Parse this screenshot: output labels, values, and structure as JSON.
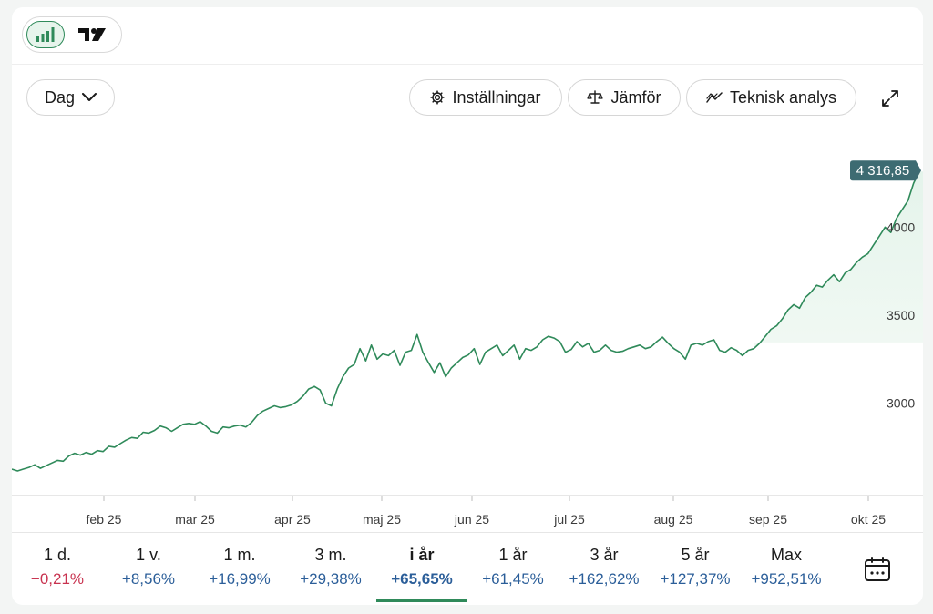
{
  "toolbar": {
    "interval_label": "Dag",
    "settings_label": "Inställningar",
    "compare_label": "Jämför",
    "technical_label": "Teknisk analys"
  },
  "colors": {
    "line": "#2f8a5a",
    "area": "#eaf6ef",
    "price_tag": "#3d6b72",
    "positive": "#2b5e99",
    "negative": "#c8324f"
  },
  "chart_data": {
    "type": "line",
    "title": "",
    "xlabel": "",
    "ylabel": "",
    "x_tick_labels": [
      "feb 25",
      "mar 25",
      "apr 25",
      "maj 25",
      "jun 25",
      "jul 25",
      "aug 25",
      "sep 25",
      "okt 25"
    ],
    "y_ticks": [
      3000,
      3500,
      4000
    ],
    "ylim": [
      2475,
      4525
    ],
    "last_value": 4316.85,
    "last_value_label": "4 316,85",
    "grid": false,
    "series": [
      {
        "values": [
          2625,
          2615,
          2625,
          2635,
          2650,
          2630,
          2645,
          2660,
          2675,
          2670,
          2700,
          2715,
          2705,
          2720,
          2710,
          2730,
          2725,
          2755,
          2750,
          2770,
          2790,
          2805,
          2800,
          2835,
          2830,
          2845,
          2870,
          2860,
          2840,
          2860,
          2880,
          2885,
          2880,
          2895,
          2870,
          2840,
          2830,
          2865,
          2860,
          2870,
          2875,
          2865,
          2890,
          2930,
          2955,
          2970,
          2985,
          2975,
          2980,
          2990,
          3010,
          3040,
          3080,
          3095,
          3075,
          3000,
          2985,
          3080,
          3150,
          3200,
          3220,
          3310,
          3240,
          3330,
          3250,
          3280,
          3270,
          3300,
          3215,
          3290,
          3300,
          3390,
          3290,
          3230,
          3175,
          3230,
          3150,
          3200,
          3230,
          3260,
          3275,
          3310,
          3220,
          3290,
          3310,
          3330,
          3270,
          3300,
          3330,
          3250,
          3310,
          3300,
          3320,
          3360,
          3380,
          3370,
          3350,
          3290,
          3305,
          3350,
          3320,
          3340,
          3290,
          3300,
          3330,
          3300,
          3290,
          3295,
          3310,
          3320,
          3330,
          3310,
          3320,
          3350,
          3375,
          3340,
          3310,
          3290,
          3250,
          3330,
          3340,
          3330,
          3350,
          3360,
          3300,
          3290,
          3315,
          3300,
          3270,
          3300,
          3310,
          3340,
          3380,
          3420,
          3440,
          3480,
          3530,
          3560,
          3540,
          3600,
          3630,
          3670,
          3660,
          3700,
          3730,
          3690,
          3740,
          3760,
          3800,
          3830,
          3850,
          3900,
          3950,
          4000,
          3970,
          4050,
          4100,
          4150,
          4250,
          4316.85
        ]
      }
    ]
  },
  "periods": [
    {
      "label": "1 d.",
      "change": "−0,21%",
      "sign": "neg"
    },
    {
      "label": "1 v.",
      "change": "+8,56%",
      "sign": "pos"
    },
    {
      "label": "1 m.",
      "change": "+16,99%",
      "sign": "pos"
    },
    {
      "label": "3 m.",
      "change": "+29,38%",
      "sign": "pos"
    },
    {
      "label": "i år",
      "change": "+65,65%",
      "sign": "pos",
      "active": true
    },
    {
      "label": "1 år",
      "change": "+61,45%",
      "sign": "pos"
    },
    {
      "label": "3 år",
      "change": "+162,62%",
      "sign": "pos"
    },
    {
      "label": "5 år",
      "change": "+127,37%",
      "sign": "pos"
    },
    {
      "label": "Max",
      "change": "+952,51%",
      "sign": "pos"
    }
  ]
}
